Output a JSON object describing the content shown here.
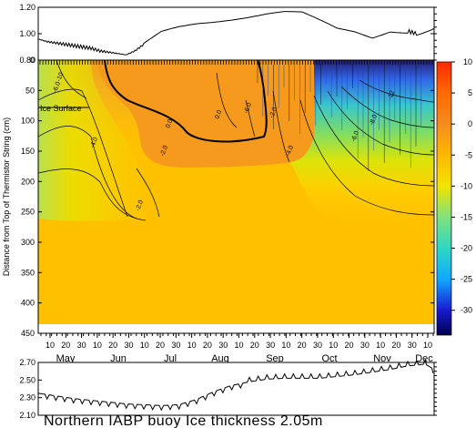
{
  "title": "Northern IABP buoy   Ice thickness 2.05m",
  "ice_surface_label": "Ice Surface",
  "colorbar": {
    "ticks": [
      "10",
      "5",
      "0",
      "-5",
      "-10",
      "-15",
      "-20",
      "-25",
      "-30"
    ],
    "stops": [
      {
        "value": 10,
        "color": "#ff2a00"
      },
      {
        "value": 5,
        "color": "#ff6a00"
      },
      {
        "value": 0,
        "color": "#f58c1e"
      },
      {
        "value": -5,
        "color": "#ffb800"
      },
      {
        "value": -10,
        "color": "#f2e400"
      },
      {
        "value": -15,
        "color": "#7fe27a"
      },
      {
        "value": -20,
        "color": "#2fd8c4"
      },
      {
        "value": -25,
        "color": "#10a8ff"
      },
      {
        "value": -30,
        "color": "#1a1acf"
      },
      {
        "value": -34,
        "color": "#000050"
      }
    ]
  },
  "chart_data": [
    {
      "type": "line",
      "panel": "top",
      "ylim": [
        0.8,
        1.2
      ],
      "yticks": [
        "1.20",
        "1.00",
        "0.80"
      ],
      "x": [
        0,
        5,
        10,
        15,
        20,
        25,
        30,
        35,
        40,
        45,
        50,
        55,
        60,
        70,
        80,
        90,
        100,
        110,
        120,
        130,
        140,
        150,
        160,
        170,
        180,
        190,
        200,
        210,
        215,
        225
      ],
      "values": [
        0.96,
        0.94,
        0.93,
        0.92,
        0.91,
        0.9,
        0.89,
        0.87,
        0.86,
        0.85,
        0.84,
        0.87,
        0.92,
        1.01,
        1.05,
        1.08,
        1.1,
        1.12,
        1.14,
        1.16,
        1.17,
        1.16,
        1.1,
        1.04,
        1.02,
        0.98,
        1.03,
        1.02,
        1.0,
        1.04
      ]
    },
    {
      "type": "heatmap",
      "panel": "main",
      "ylabel": "Distance from Top of Thermistor String (cm)",
      "ylim": [
        450,
        0
      ],
      "yticks": [
        "0",
        "50",
        "100",
        "150",
        "200",
        "250",
        "300",
        "350",
        "400",
        "450"
      ],
      "xticks_days": [
        "10",
        "20",
        "30",
        "10",
        "20",
        "30",
        "10",
        "20",
        "30",
        "10",
        "20",
        "30",
        "10",
        "20",
        "30",
        "10",
        "20",
        "30",
        "10",
        "20",
        "30",
        "10",
        "20",
        "30",
        "10"
      ],
      "months": [
        "May",
        "Jun",
        "Jul",
        "Aug",
        "Sep",
        "Oct",
        "Nov",
        "Dec"
      ],
      "contour_labels": [
        "0.0",
        "-2.0",
        "-4.0",
        "-6.0",
        "-8.0",
        "-10",
        "-12"
      ],
      "zlim": [
        -34,
        10
      ]
    },
    {
      "type": "line",
      "panel": "bottom",
      "ylim": [
        2.1,
        2.7
      ],
      "yticks": [
        "2.70",
        "2.50",
        "2.30",
        "2.10"
      ],
      "x": [
        0,
        10,
        20,
        30,
        40,
        50,
        60,
        70,
        80,
        90,
        100,
        110,
        120,
        130,
        140,
        150,
        160,
        170,
        180,
        190,
        200,
        210,
        220,
        225
      ],
      "values": [
        2.35,
        2.32,
        2.29,
        2.27,
        2.25,
        2.23,
        2.22,
        2.21,
        2.22,
        2.28,
        2.37,
        2.44,
        2.48,
        2.51,
        2.52,
        2.52,
        2.52,
        2.54,
        2.56,
        2.59,
        2.62,
        2.66,
        2.68,
        2.62
      ]
    }
  ]
}
